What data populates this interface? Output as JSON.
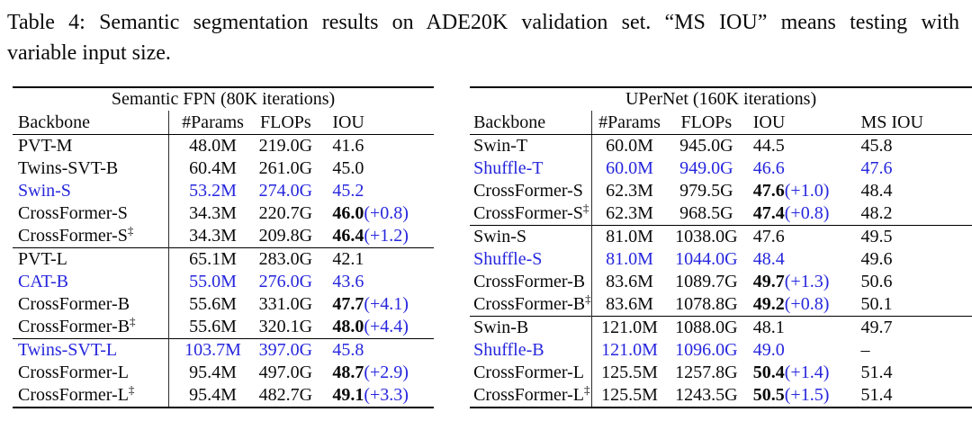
{
  "caption": {
    "line1": "Table 4: Semantic segmentation results on ADE20K validation set. “MS IOU” means testing with",
    "line2": "variable input size."
  },
  "colors": {
    "accent_blue": "#2626dd",
    "text": "#0a0a0a",
    "rule": "#000000"
  },
  "tables": [
    {
      "title": "Semantic FPN (80K iterations)",
      "columns": [
        "Backbone",
        "#Params",
        "FLOPs",
        "IOU"
      ],
      "groups": [
        [
          {
            "backbone": "PVT-M",
            "dagger": false,
            "blue": false,
            "bold": false,
            "params": "48.0M",
            "flops": "219.0G",
            "iou": "41.6",
            "delta": ""
          },
          {
            "backbone": "Twins-SVT-B",
            "dagger": false,
            "blue": false,
            "bold": false,
            "params": "60.4M",
            "flops": "261.0G",
            "iou": "45.0",
            "delta": ""
          },
          {
            "backbone": "Swin-S",
            "dagger": false,
            "blue": true,
            "bold": false,
            "params": "53.2M",
            "flops": "274.0G",
            "iou": "45.2",
            "delta": ""
          },
          {
            "backbone": "CrossFormer-S",
            "dagger": false,
            "blue": false,
            "bold": true,
            "params": "34.3M",
            "flops": "220.7G",
            "iou": "46.0",
            "delta": "(+0.8)"
          },
          {
            "backbone": "CrossFormer-S",
            "dagger": true,
            "blue": false,
            "bold": true,
            "params": "34.3M",
            "flops": "209.8G",
            "iou": "46.4",
            "delta": "(+1.2)"
          }
        ],
        [
          {
            "backbone": "PVT-L",
            "dagger": false,
            "blue": false,
            "bold": false,
            "params": "65.1M",
            "flops": "283.0G",
            "iou": "42.1",
            "delta": ""
          },
          {
            "backbone": "CAT-B",
            "dagger": false,
            "blue": true,
            "bold": false,
            "params": "55.0M",
            "flops": "276.0G",
            "iou": "43.6",
            "delta": ""
          },
          {
            "backbone": "CrossFormer-B",
            "dagger": false,
            "blue": false,
            "bold": true,
            "params": "55.6M",
            "flops": "331.0G",
            "iou": "47.7",
            "delta": "(+4.1)"
          },
          {
            "backbone": "CrossFormer-B",
            "dagger": true,
            "blue": false,
            "bold": true,
            "params": "55.6M",
            "flops": "320.1G",
            "iou": "48.0",
            "delta": "(+4.4)"
          }
        ],
        [
          {
            "backbone": "Twins-SVT-L",
            "dagger": false,
            "blue": true,
            "bold": false,
            "params": "103.7M",
            "flops": "397.0G",
            "iou": "45.8",
            "delta": ""
          },
          {
            "backbone": "CrossFormer-L",
            "dagger": false,
            "blue": false,
            "bold": true,
            "params": "95.4M",
            "flops": "497.0G",
            "iou": "48.7",
            "delta": "(+2.9)"
          },
          {
            "backbone": "CrossFormer-L",
            "dagger": true,
            "blue": false,
            "bold": true,
            "params": "95.4M",
            "flops": "482.7G",
            "iou": "49.1",
            "delta": "(+3.3)"
          }
        ]
      ]
    },
    {
      "title": "UPerNet (160K iterations)",
      "columns": [
        "Backbone",
        "#Params",
        "FLOPs",
        "IOU",
        "MS IOU"
      ],
      "groups": [
        [
          {
            "backbone": "Swin-T",
            "dagger": false,
            "blue": false,
            "bold": false,
            "params": "60.0M",
            "flops": "945.0G",
            "iou": "44.5",
            "delta": "",
            "ms_iou": "45.8",
            "ms_blue": false
          },
          {
            "backbone": "Shuffle-T",
            "dagger": false,
            "blue": true,
            "bold": false,
            "params": "60.0M",
            "flops": "949.0G",
            "iou": "46.6",
            "delta": "",
            "ms_iou": "47.6",
            "ms_blue": true
          },
          {
            "backbone": "CrossFormer-S",
            "dagger": false,
            "blue": false,
            "bold": true,
            "params": "62.3M",
            "flops": "979.5G",
            "iou": "47.6",
            "delta": "(+1.0)",
            "ms_iou": "48.4",
            "ms_blue": false
          },
          {
            "backbone": "CrossFormer-S",
            "dagger": true,
            "blue": false,
            "bold": true,
            "params": "62.3M",
            "flops": "968.5G",
            "iou": "47.4",
            "delta": "(+0.8)",
            "ms_iou": "48.2",
            "ms_blue": false
          }
        ],
        [
          {
            "backbone": "Swin-S",
            "dagger": false,
            "blue": false,
            "bold": false,
            "params": "81.0M",
            "flops": "1038.0G",
            "iou": "47.6",
            "delta": "",
            "ms_iou": "49.5",
            "ms_blue": false
          },
          {
            "backbone": "Shuffle-S",
            "dagger": false,
            "blue": true,
            "bold": false,
            "params": "81.0M",
            "flops": "1044.0G",
            "iou": "48.4",
            "delta": "",
            "ms_iou": "49.6",
            "ms_blue": false
          },
          {
            "backbone": "CrossFormer-B",
            "dagger": false,
            "blue": false,
            "bold": true,
            "params": "83.6M",
            "flops": "1089.7G",
            "iou": "49.7",
            "delta": "(+1.3)",
            "ms_iou": "50.6",
            "ms_blue": false
          },
          {
            "backbone": "CrossFormer-B",
            "dagger": true,
            "blue": false,
            "bold": true,
            "params": "83.6M",
            "flops": "1078.8G",
            "iou": "49.2",
            "delta": "(+0.8)",
            "ms_iou": "50.1",
            "ms_blue": false
          }
        ],
        [
          {
            "backbone": "Swin-B",
            "dagger": false,
            "blue": false,
            "bold": false,
            "params": "121.0M",
            "flops": "1088.0G",
            "iou": "48.1",
            "delta": "",
            "ms_iou": "49.7",
            "ms_blue": false
          },
          {
            "backbone": "Shuffle-B",
            "dagger": false,
            "blue": true,
            "bold": false,
            "params": "121.0M",
            "flops": "1096.0G",
            "iou": "49.0",
            "delta": "",
            "ms_iou": "–",
            "ms_blue": false
          },
          {
            "backbone": "CrossFormer-L",
            "dagger": false,
            "blue": false,
            "bold": true,
            "params": "125.5M",
            "flops": "1257.8G",
            "iou": "50.4",
            "delta": "(+1.4)",
            "ms_iou": "51.4",
            "ms_blue": false
          },
          {
            "backbone": "CrossFormer-L",
            "dagger": true,
            "blue": false,
            "bold": true,
            "params": "125.5M",
            "flops": "1243.5G",
            "iou": "50.5",
            "delta": "(+1.5)",
            "ms_iou": "51.4",
            "ms_blue": false
          }
        ]
      ]
    }
  ]
}
